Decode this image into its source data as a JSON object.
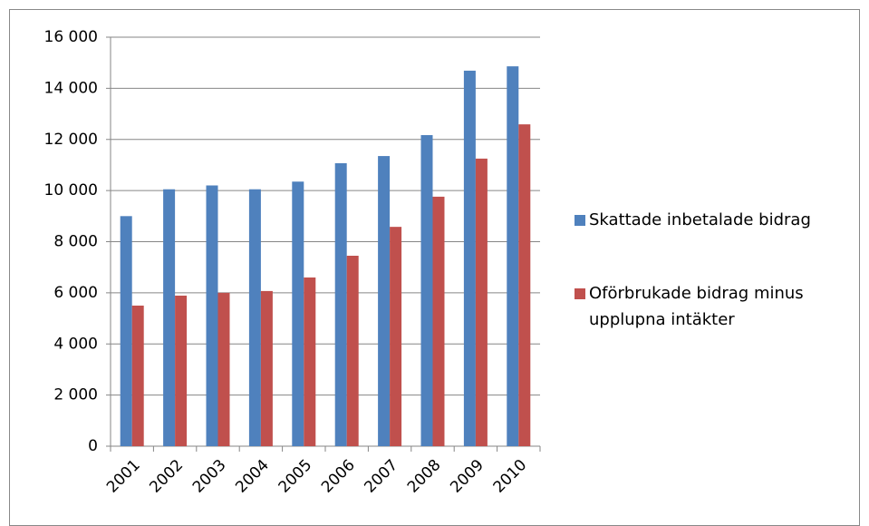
{
  "chart_data": {
    "type": "bar",
    "categories": [
      "2001",
      "2002",
      "2003",
      "2004",
      "2005",
      "2006",
      "2007",
      "2008",
      "2009",
      "2010"
    ],
    "series": [
      {
        "name": "Skattade inbetalade bidrag",
        "color": "#4f81bd",
        "values": [
          9000,
          10050,
          10200,
          10050,
          10350,
          11070,
          11350,
          12170,
          14690,
          14860
        ]
      },
      {
        "name": "Oförbrukade bidrag minus upplupna intäkter",
        "color": "#c0504d",
        "values": [
          5500,
          5890,
          6000,
          6070,
          6600,
          7450,
          8580,
          9760,
          11250,
          12590
        ]
      }
    ],
    "ylim": [
      0,
      16000
    ],
    "yticks": [
      {
        "value": 0,
        "label": "0"
      },
      {
        "value": 2000,
        "label": "2 000"
      },
      {
        "value": 4000,
        "label": "4 000"
      },
      {
        "value": 6000,
        "label": "6 000"
      },
      {
        "value": 8000,
        "label": "8 000"
      },
      {
        "value": 10000,
        "label": "10 000"
      },
      {
        "value": 12000,
        "label": "12 000"
      },
      {
        "value": 14000,
        "label": "14 000"
      },
      {
        "value": 16000,
        "label": "16 000"
      }
    ],
    "grid": true,
    "legend": "right"
  }
}
